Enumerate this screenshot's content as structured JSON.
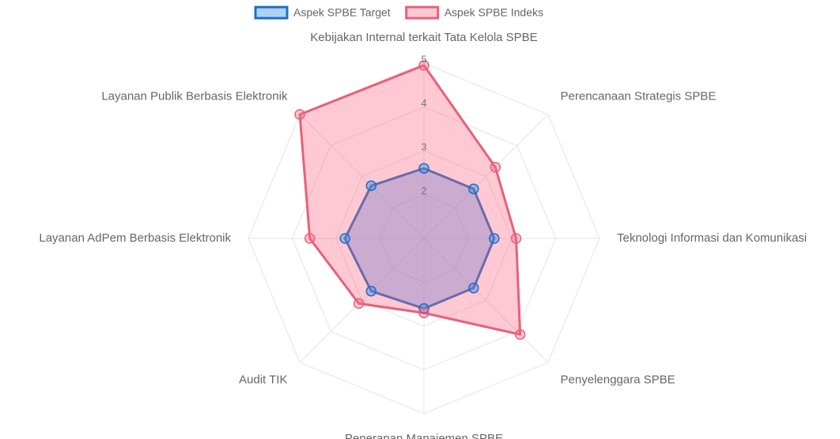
{
  "chart_data": {
    "type": "radar",
    "categories": [
      "Kebijakan Internal terkait Tata Kelola SPBE",
      "Perencanaan Strategis SPBE",
      "Teknologi Informasi dan Komunikasi",
      "Penyelenggara SPBE",
      "Penerapan Manajemen SPBE",
      "Audit TIK",
      "Layanan AdPem Berbasis Elektronik",
      "Layanan Publik Berbasis Elektronik"
    ],
    "series": [
      {
        "name": "Aspek SPBE Target",
        "color": "#1b6fc4",
        "fill": "rgba(54,140,235,0.4)",
        "values": [
          2.6,
          2.6,
          2.6,
          2.6,
          2.6,
          2.7,
          2.8,
          2.7
        ]
      },
      {
        "name": "Aspek SPBE Indeks",
        "color": "#e8607a",
        "fill": "rgba(255,99,132,0.35)",
        "values": [
          4.95,
          3.3,
          3.1,
          4.1,
          2.7,
          3.1,
          3.6,
          5
        ]
      }
    ],
    "rlim": [
      1,
      5
    ],
    "rticks": [
      2,
      3,
      4,
      5
    ],
    "grid": true
  }
}
